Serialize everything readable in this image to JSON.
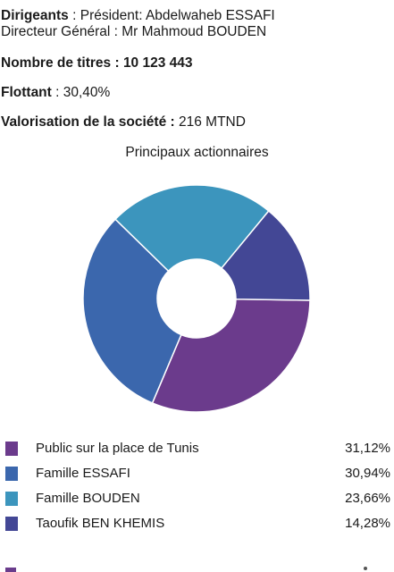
{
  "info": {
    "dirigeants_label": "Dirigeants",
    "dirigeants_value": " : Président: Abdelwaheb ESSAFI",
    "directeur": "Directeur Général : Mr Mahmoud BOUDEN",
    "titres_label": "Nombre de titres : 10 123 443",
    "flottant_label": "Flottant",
    "flottant_value": " : 30,40%",
    "valorisation_label": "Valorisation de la société :",
    "valorisation_value": " 216 MTND"
  },
  "chart_data": {
    "type": "pie",
    "subtype": "donut",
    "title": "Principaux actionnaires",
    "slices": [
      {
        "label": "Public sur la place de Tunis",
        "value": 31.12,
        "display": "31,12%",
        "color": "#6b3b8c"
      },
      {
        "label": "Famille ESSAFI",
        "value": 30.94,
        "display": "30,94%",
        "color": "#3b67ad"
      },
      {
        "label": "Famille BOUDEN",
        "value": 23.66,
        "display": "23,66%",
        "color": "#3c95bd"
      },
      {
        "label": "Taoufik BEN KHEMIS",
        "value": 14.28,
        "display": "14,28%",
        "color": "#434795"
      }
    ],
    "legend_position": "bottom"
  }
}
